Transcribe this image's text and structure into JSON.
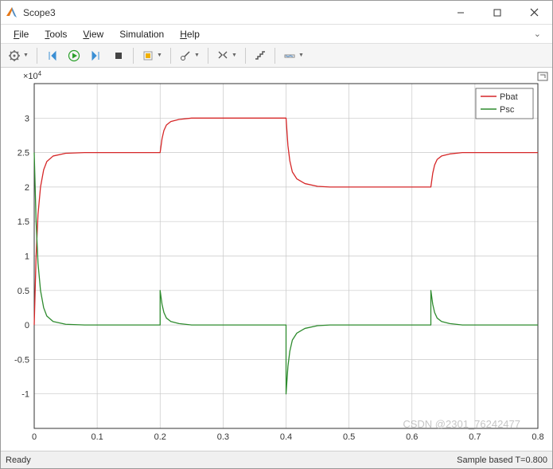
{
  "window": {
    "title": "Scope3"
  },
  "menu": {
    "file": "File",
    "file_u": "F",
    "tools": "Tools",
    "tools_u": "T",
    "view": "View",
    "view_u": "V",
    "simulation": "Simulation",
    "simulation_u": "",
    "help": "Help",
    "help_u": "H"
  },
  "chart": {
    "exponent": "×10",
    "exponent_sup": "4",
    "xlim": [
      0,
      0.8
    ],
    "ylim": [
      -1.5,
      3.5
    ],
    "xticks": [
      0,
      0.1,
      0.2,
      0.3,
      0.4,
      0.5,
      0.6,
      0.7,
      0.8
    ],
    "xtick_labels": [
      "0",
      "0.1",
      "0.2",
      "0.3",
      "0.4",
      "0.5",
      "0.6",
      "0.7",
      "0.8"
    ],
    "yticks": [
      -1,
      -0.5,
      0,
      0.5,
      1,
      1.5,
      2,
      2.5,
      3
    ],
    "ytick_labels": [
      "-1",
      "-0.5",
      "0",
      "0.5",
      "1",
      "1.5",
      "2",
      "2.5",
      "3"
    ],
    "bg": "#ffffff",
    "axis_color": "#333333",
    "grid_color": "#c8c8c8",
    "tick_font_size": 11,
    "legend": {
      "fill": "#ffffff",
      "stroke": "#555555",
      "items": [
        {
          "label": "Pbat",
          "color": "#d62728"
        },
        {
          "label": "Psc",
          "color": "#2e8b2e"
        }
      ]
    },
    "series": [
      {
        "name": "Pbat",
        "color": "#d62728",
        "width": 1.3,
        "points": [
          [
            0,
            0
          ],
          [
            0.003,
            1.0
          ],
          [
            0.006,
            1.6
          ],
          [
            0.01,
            2.0
          ],
          [
            0.015,
            2.25
          ],
          [
            0.02,
            2.37
          ],
          [
            0.03,
            2.45
          ],
          [
            0.05,
            2.49
          ],
          [
            0.08,
            2.5
          ],
          [
            0.2,
            2.5
          ],
          [
            0.203,
            2.7
          ],
          [
            0.206,
            2.82
          ],
          [
            0.21,
            2.9
          ],
          [
            0.217,
            2.95
          ],
          [
            0.23,
            2.98
          ],
          [
            0.25,
            3.0
          ],
          [
            0.4,
            3.0
          ],
          [
            0.403,
            2.6
          ],
          [
            0.406,
            2.38
          ],
          [
            0.41,
            2.22
          ],
          [
            0.417,
            2.12
          ],
          [
            0.43,
            2.05
          ],
          [
            0.45,
            2.01
          ],
          [
            0.47,
            2.0
          ],
          [
            0.63,
            2.0
          ],
          [
            0.633,
            2.2
          ],
          [
            0.636,
            2.32
          ],
          [
            0.64,
            2.4
          ],
          [
            0.647,
            2.45
          ],
          [
            0.66,
            2.48
          ],
          [
            0.68,
            2.5
          ],
          [
            0.8,
            2.5
          ]
        ]
      },
      {
        "name": "Psc",
        "color": "#2e8b2e",
        "width": 1.3,
        "points": [
          [
            0,
            2.5
          ],
          [
            0.003,
            1.5
          ],
          [
            0.006,
            0.9
          ],
          [
            0.01,
            0.5
          ],
          [
            0.015,
            0.25
          ],
          [
            0.02,
            0.13
          ],
          [
            0.03,
            0.05
          ],
          [
            0.05,
            0.01
          ],
          [
            0.08,
            0.0
          ],
          [
            0.2,
            0.0
          ],
          [
            0.2,
            0.5
          ],
          [
            0.203,
            0.3
          ],
          [
            0.206,
            0.18
          ],
          [
            0.21,
            0.1
          ],
          [
            0.217,
            0.05
          ],
          [
            0.23,
            0.02
          ],
          [
            0.25,
            0.0
          ],
          [
            0.4,
            0.0
          ],
          [
            0.4,
            -1.0
          ],
          [
            0.403,
            -0.6
          ],
          [
            0.406,
            -0.38
          ],
          [
            0.41,
            -0.22
          ],
          [
            0.417,
            -0.12
          ],
          [
            0.43,
            -0.05
          ],
          [
            0.45,
            -0.01
          ],
          [
            0.47,
            0.0
          ],
          [
            0.63,
            0.0
          ],
          [
            0.63,
            0.5
          ],
          [
            0.633,
            0.3
          ],
          [
            0.636,
            0.18
          ],
          [
            0.64,
            0.1
          ],
          [
            0.647,
            0.05
          ],
          [
            0.66,
            0.02
          ],
          [
            0.68,
            0.0
          ],
          [
            0.8,
            0.0
          ]
        ]
      }
    ]
  },
  "status": {
    "left": "Ready",
    "right": "Sample based  T=0.800"
  },
  "watermark": "CSDN @2301_76242477",
  "toolbar_icons": {
    "gear": "#6a6a6a",
    "step_back": "#3b8fd4",
    "play": "#2aa02a",
    "step_fwd": "#3b8fd4",
    "stop": "#444444",
    "highlight": "#f0b000",
    "cursor": "#555555",
    "zoom": "#555555",
    "stair": "#555555",
    "marker": "#77aadd"
  }
}
